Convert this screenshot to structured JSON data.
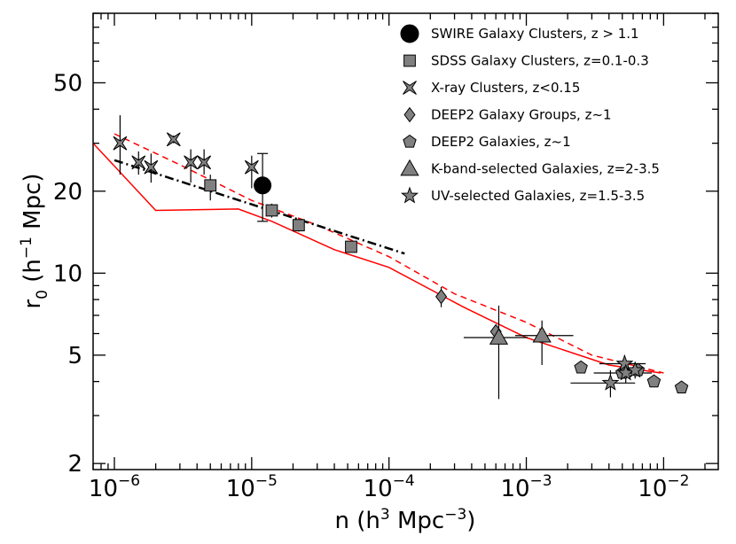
{
  "chart_data": {
    "type": "scatter",
    "xscale": "log",
    "yscale": "log",
    "xlim": [
      7e-07,
      0.025
    ],
    "ylim": [
      1.9,
      90
    ],
    "xlabel": "n (h³ Mpc⁻³)",
    "ylabel": "r₀ (h⁻¹ Mpc)",
    "x_ticks": [
      {
        "value": 1e-06,
        "base": "10",
        "exp": "−6"
      },
      {
        "value": 1e-05,
        "base": "10",
        "exp": "−5"
      },
      {
        "value": 0.0001,
        "base": "10",
        "exp": "−4"
      },
      {
        "value": 0.001,
        "base": "10",
        "exp": "−3"
      },
      {
        "value": 0.01,
        "base": "10",
        "exp": "−2"
      }
    ],
    "y_ticks": [
      {
        "value": 2,
        "label": "2"
      },
      {
        "value": 5,
        "label": "5"
      },
      {
        "value": 10,
        "label": "10"
      },
      {
        "value": 20,
        "label": "20"
      },
      {
        "value": 50,
        "label": "50"
      }
    ],
    "legend_position": "top-right",
    "series": [
      {
        "name": "SWIRE Galaxy Clusters, z > 1.1",
        "marker": "circle",
        "color": "#000000",
        "points": [
          {
            "x": 1.2e-05,
            "y": 21,
            "ylo": 15.5,
            "yhi": 27.5
          }
        ]
      },
      {
        "name": "SDSS Galaxy Clusters, z=0.1-0.3",
        "marker": "square",
        "color": "#808080",
        "points": [
          {
            "x": 5e-06,
            "y": 21,
            "ylo": 18.5,
            "yhi": 23
          },
          {
            "x": 1.4e-05,
            "y": 17,
            "ylo": 16,
            "yhi": 18
          },
          {
            "x": 2.2e-05,
            "y": 15,
            "ylo": 14.2,
            "yhi": 15.8
          },
          {
            "x": 5.3e-05,
            "y": 12.5,
            "ylo": 12,
            "yhi": 13
          }
        ]
      },
      {
        "name": "X-ray Clusters, z<0.15",
        "marker": "bowtie",
        "color": "#808080",
        "points": [
          {
            "x": 1.1e-06,
            "y": 30,
            "ylo": 23,
            "yhi": 38
          },
          {
            "x": 1.5e-06,
            "y": 25.5,
            "ylo": 23,
            "yhi": 28
          },
          {
            "x": 1.85e-06,
            "y": 24.5,
            "ylo": 21.5,
            "yhi": 27.5
          },
          {
            "x": 2.7e-06,
            "y": 31,
            "ylo": 30,
            "yhi": 32
          },
          {
            "x": 3.6e-06,
            "y": 25.5,
            "ylo": 21.5,
            "yhi": 28.5
          },
          {
            "x": 4.5e-06,
            "y": 25.5,
            "ylo": 23,
            "yhi": 28.5
          },
          {
            "x": 1e-05,
            "y": 24.5,
            "ylo": 20.5,
            "yhi": 27
          }
        ]
      },
      {
        "name": "DEEP2 Galaxy Groups, z~1",
        "marker": "diamond",
        "color": "#808080",
        "points": [
          {
            "x": 0.00024,
            "y": 8.2,
            "ylo": 7.5,
            "yhi": 8.9
          },
          {
            "x": 0.0006,
            "y": 6.1,
            "ylo": 5.8,
            "yhi": 6.4
          }
        ]
      },
      {
        "name": "DEEP2 Galaxies, z~1",
        "marker": "pentagon",
        "color": "#808080",
        "points": [
          {
            "x": 0.0025,
            "y": 4.5
          },
          {
            "x": 0.005,
            "y": 4.3
          },
          {
            "x": 0.0065,
            "y": 4.4
          },
          {
            "x": 0.0085,
            "y": 4.0
          },
          {
            "x": 0.0135,
            "y": 3.8
          }
        ]
      },
      {
        "name": "K-band-selected Galaxies, z=2-3.5",
        "marker": "triangle",
        "color": "#808080",
        "points": [
          {
            "x": 0.00063,
            "y": 5.8,
            "ylo": 3.45,
            "yhi": 7.6,
            "xlo": 0.00035,
            "xhi": 0.00102
          },
          {
            "x": 0.0013,
            "y": 5.9,
            "ylo": 4.6,
            "yhi": 6.7,
            "xlo": 0.00083,
            "xhi": 0.0022
          }
        ]
      },
      {
        "name": "UV-selected Galaxies, z=1.5-3.5",
        "marker": "star",
        "color": "#808080",
        "points": [
          {
            "x": 0.0041,
            "y": 3.95,
            "ylo": 3.5,
            "yhi": 4.4,
            "xlo": 0.0021,
            "xhi": 0.0062
          },
          {
            "x": 0.0052,
            "y": 4.65,
            "ylo": 4.3,
            "yhi": 5.0,
            "xlo": 0.0034,
            "xhi": 0.0074
          },
          {
            "x": 0.0053,
            "y": 4.3,
            "ylo": 3.95,
            "yhi": 4.65,
            "xlo": 0.0031,
            "xhi": 0.0082
          },
          {
            "x": 0.0062,
            "y": 4.4,
            "ylo": 4.1,
            "yhi": 4.7
          }
        ]
      }
    ],
    "lines": [
      {
        "style": "solid",
        "color": "#ff0000",
        "x": [
          7e-07,
          2e-06,
          8e-06,
          1.4e-05,
          4e-05,
          0.0001,
          0.00035,
          0.001,
          0.004,
          0.0095
        ],
        "y": [
          30,
          17,
          17.2,
          15.5,
          12.2,
          10.5,
          7.5,
          5.8,
          4.6,
          4.3
        ]
      },
      {
        "style": "dashed",
        "color": "#ff0000",
        "x": [
          1e-06,
          3e-06,
          1e-05,
          3e-05,
          0.0001,
          0.0003,
          0.001,
          0.003,
          0.01
        ],
        "y": [
          32.5,
          25,
          18.5,
          15,
          11.5,
          8.4,
          6.6,
          5.0,
          4.3
        ]
      },
      {
        "style": "dashdot",
        "color": "#000000",
        "x": [
          1e-06,
          0.00013
        ],
        "y": [
          26,
          11.8
        ]
      }
    ]
  }
}
